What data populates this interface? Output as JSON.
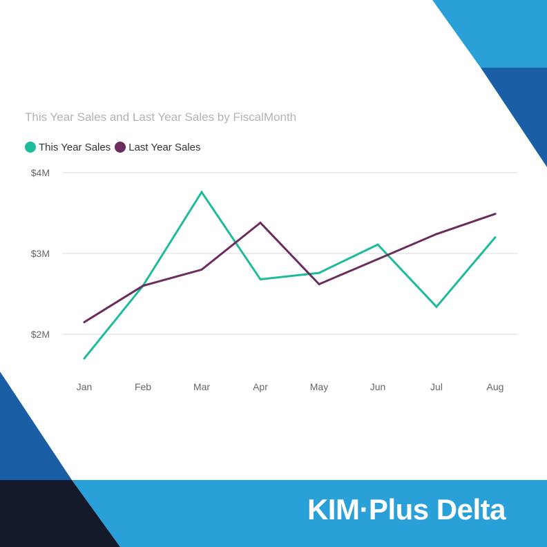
{
  "brand": {
    "logo_text": "KIM·Plus Delta",
    "colors": {
      "light_blue": "#2aa0d8",
      "dark_blue": "#1a5ea6",
      "navy": "#141a2a"
    }
  },
  "chart_data": {
    "type": "line",
    "title": "This Year Sales and Last Year Sales by FiscalMonth",
    "xlabel": "",
    "ylabel": "",
    "categories": [
      "Jan",
      "Feb",
      "Mar",
      "Apr",
      "May",
      "Jun",
      "Jul",
      "Aug"
    ],
    "series": [
      {
        "name": "This Year Sales",
        "color": "#1ebb9a",
        "values": [
          1.7,
          2.6,
          3.76,
          2.68,
          2.76,
          3.11,
          2.34,
          3.2
        ]
      },
      {
        "name": "Last Year Sales",
        "color": "#6b2c5e",
        "values": [
          2.15,
          2.6,
          2.8,
          3.38,
          2.62,
          2.93,
          3.24,
          3.49
        ]
      }
    ],
    "yticks": [
      "$2M",
      "$3M",
      "$4M"
    ],
    "ytick_values": [
      2,
      3,
      4
    ],
    "ylim": [
      1.5,
      4.2
    ],
    "grid": true,
    "legend_position": "top-left"
  }
}
